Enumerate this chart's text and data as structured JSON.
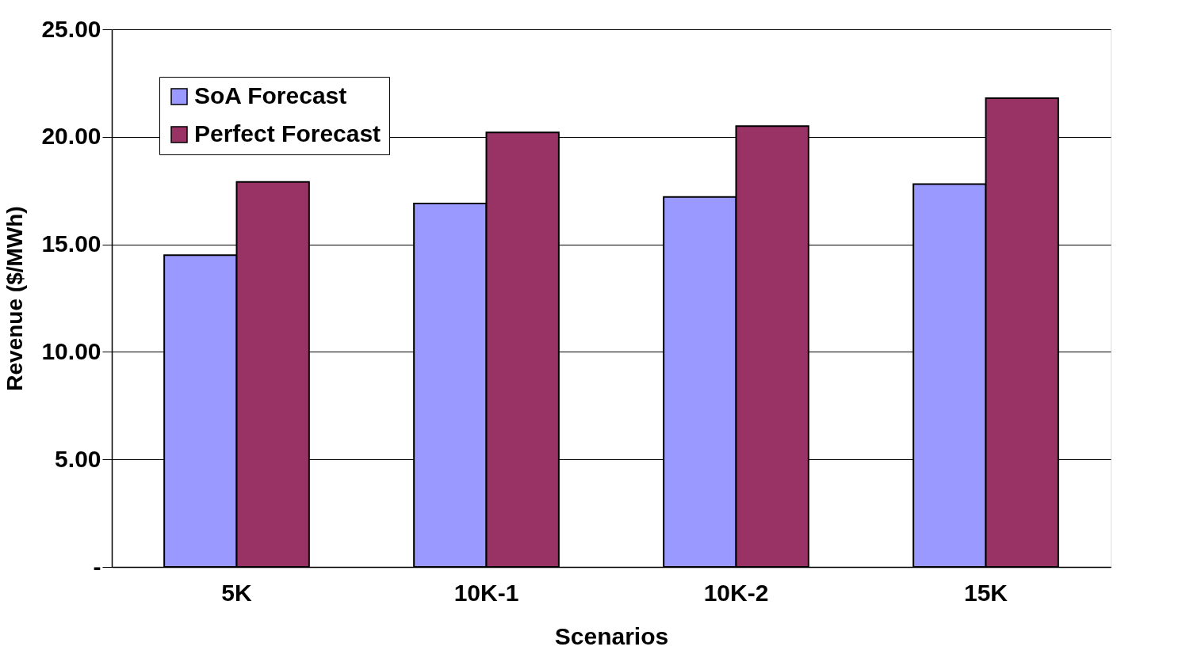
{
  "chart_data": {
    "type": "bar",
    "xlabel": "Scenarios",
    "ylabel": "Revenue ($/MWh)",
    "categories": [
      "5K",
      "10K-1",
      "10K-2",
      "15K"
    ],
    "series": [
      {
        "name": "SoA Forecast",
        "color": "#9999ff",
        "values": [
          14.5,
          16.9,
          17.2,
          17.8
        ]
      },
      {
        "name": "Perfect Forecast",
        "color": "#993366",
        "values": [
          17.9,
          20.2,
          20.5,
          21.8
        ]
      }
    ],
    "ylim": [
      0,
      25
    ],
    "yticks": [
      {
        "value": 0,
        "label": "-"
      },
      {
        "value": 5,
        "label": "5.00"
      },
      {
        "value": 10,
        "label": "10.00"
      },
      {
        "value": 15,
        "label": "15.00"
      },
      {
        "value": 20,
        "label": "20.00"
      },
      {
        "value": 25,
        "label": "25.00"
      }
    ],
    "grid": "y",
    "legend": "top left"
  }
}
